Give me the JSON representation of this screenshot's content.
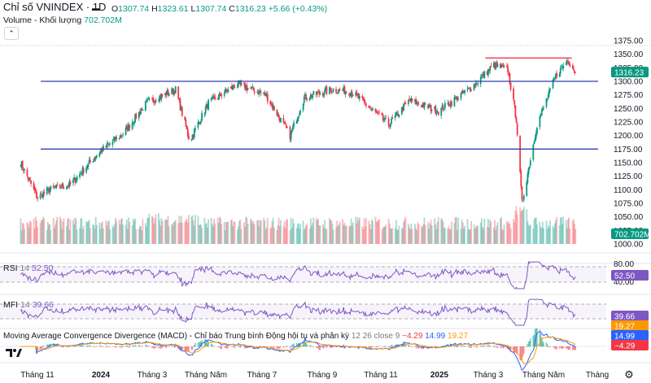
{
  "header": {
    "symbol": "Chỉ số VNINDEX · 1D",
    "ohlc": [
      {
        "label": "O",
        "value": "1307.74"
      },
      {
        "label": "H",
        "value": "1323.61"
      },
      {
        "label": "L",
        "value": "1307.74"
      },
      {
        "label": "C",
        "value": "1316.23"
      }
    ],
    "change": "+5.66 (+0.43%)",
    "volume_label": "Volume - Khối lượng",
    "volume_value": "702.702M"
  },
  "price_axis": {
    "ticks": [
      "1375.00",
      "1350.00",
      "1325.00",
      "1300.00",
      "1275.00",
      "1250.00",
      "1225.00",
      "1200.00",
      "1175.00",
      "1150.00",
      "1125.00",
      "1100.00",
      "1075.00",
      "1050.00",
      "1025.00",
      "1000.00"
    ],
    "last_price_tag": "1316.23",
    "volume_tag": "702.702M"
  },
  "rsi": {
    "label": "RSI",
    "param": "14",
    "value": "52.50",
    "ticks": [
      "80.00",
      "40.00"
    ],
    "tag": "52.50"
  },
  "mfi": {
    "label": "MFI",
    "param": "14",
    "value": "39.66",
    "tag": "39.66"
  },
  "macd": {
    "label": "Moving Average Convergence Divergence (MACD) - Chỉ báo Trung bình Động hội tụ và phân kỳ",
    "params": "12 26 close 9",
    "hist": "−4.29",
    "macd": "14.99",
    "signal": "19.27",
    "tags": [
      "19.27",
      "14.99",
      "−4.29"
    ]
  },
  "time_axis": {
    "labels": [
      "Tháng 11",
      "2024",
      "Tháng 3",
      "Tháng Năm",
      "Tháng 7",
      "Tháng 9",
      "Tháng 11",
      "2025",
      "Tháng 3",
      "Tháng Năm",
      "Tháng"
    ]
  },
  "colors": {
    "up": "#089981",
    "down": "#f23645",
    "hline": "#2f3fb4",
    "hline_red": "#f23645",
    "osc": "#7e57c2",
    "macd": "#2962ff",
    "signal": "#ff9800"
  },
  "chart_data": [
    {
      "type": "candlestick",
      "title": "Chỉ số VNINDEX · 1D",
      "x_range": [
        "2023-10",
        "2025-06"
      ],
      "ylim": [
        1000,
        1375
      ],
      "key_points": [
        {
          "x": "2023-10-23",
          "close": 1150
        },
        {
          "x": "2023-11-10",
          "close": 1085
        },
        {
          "x": "2023-11-22",
          "close": 1100
        },
        {
          "x": "2023-12-15",
          "close": 1110
        },
        {
          "x": "2024-01-15",
          "close": 1170
        },
        {
          "x": "2024-02-10",
          "close": 1205
        },
        {
          "x": "2024-03-05",
          "close": 1260
        },
        {
          "x": "2024-04-05",
          "close": 1285
        },
        {
          "x": "2024-04-20",
          "close": 1190
        },
        {
          "x": "2024-05-10",
          "close": 1260
        },
        {
          "x": "2024-06-10",
          "close": 1295
        },
        {
          "x": "2024-07-10",
          "close": 1275
        },
        {
          "x": "2024-08-05",
          "close": 1200
        },
        {
          "x": "2024-08-20",
          "close": 1270
        },
        {
          "x": "2024-09-20",
          "close": 1285
        },
        {
          "x": "2024-10-10",
          "close": 1280
        },
        {
          "x": "2024-11-18",
          "close": 1220
        },
        {
          "x": "2024-12-10",
          "close": 1265
        },
        {
          "x": "2025-01-10",
          "close": 1245
        },
        {
          "x": "2025-02-15",
          "close": 1290
        },
        {
          "x": "2025-03-10",
          "close": 1330
        },
        {
          "x": "2025-03-25",
          "close": 1320
        },
        {
          "x": "2025-04-03",
          "close": 1230
        },
        {
          "x": "2025-04-09",
          "close": 1075
        },
        {
          "x": "2025-04-25",
          "close": 1220
        },
        {
          "x": "2025-05-15",
          "close": 1310
        },
        {
          "x": "2025-05-28",
          "close": 1340
        },
        {
          "x": "2025-06-05",
          "close": 1316.23
        }
      ],
      "horizontal_lines": [
        1300,
        1175
      ],
      "resistance_segment": {
        "from": "2025-03-01",
        "to": "2025-06-01",
        "value": 1343
      }
    },
    {
      "type": "bar",
      "series": [
        {
          "name": "Volume - Khối lượng",
          "last": "702.702M"
        }
      ]
    },
    {
      "type": "line",
      "series": [
        {
          "name": "RSI",
          "last": 52.5
        }
      ],
      "ylim": [
        30,
        85
      ]
    },
    {
      "type": "line",
      "series": [
        {
          "name": "MFI",
          "last": 39.66
        }
      ],
      "ylim": [
        20,
        90
      ]
    },
    {
      "type": "line",
      "series": [
        {
          "name": "MACD",
          "last": 14.99
        },
        {
          "name": "Signal",
          "last": 19.27
        },
        {
          "name": "Histogram",
          "last": -4.29
        }
      ]
    }
  ]
}
